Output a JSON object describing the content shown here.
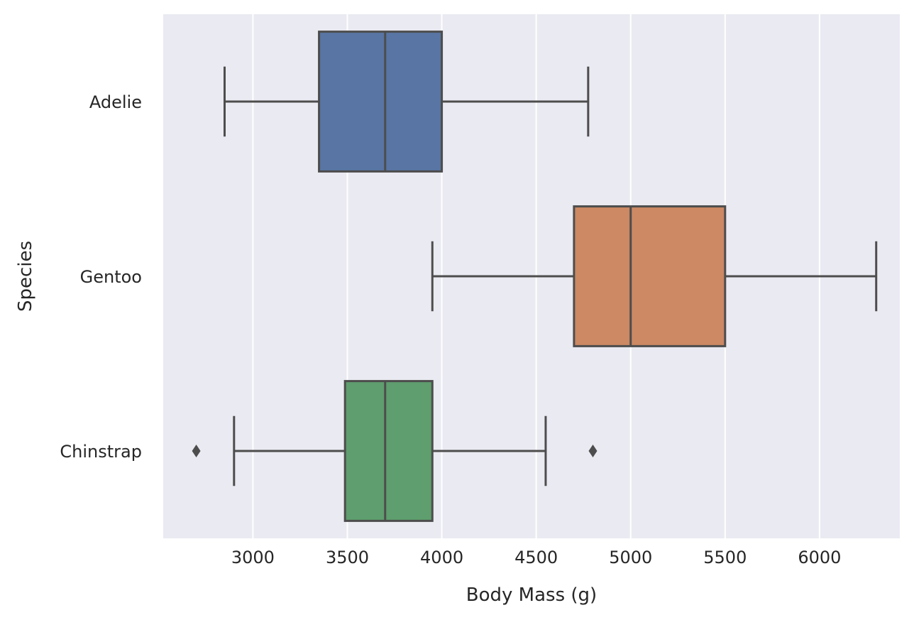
{
  "chart_data": {
    "type": "boxplot",
    "orientation": "horizontal",
    "xlabel": "Body Mass (g)",
    "ylabel": "Species",
    "xlim": [
      2525,
      6425
    ],
    "xticks": [
      3000,
      3500,
      4000,
      4500,
      5000,
      5500,
      6000
    ],
    "grid": true,
    "series": [
      {
        "name": "Adelie",
        "color": "#5875a4",
        "whisker_low": 2850,
        "q1": 3350,
        "median": 3700,
        "q3": 4000,
        "whisker_high": 4775,
        "outliers": []
      },
      {
        "name": "Gentoo",
        "color": "#cc8963",
        "whisker_low": 3950,
        "q1": 4700,
        "median": 5000,
        "q3": 5500,
        "whisker_high": 6300,
        "outliers": []
      },
      {
        "name": "Chinstrap",
        "color": "#5f9e6e",
        "whisker_low": 2900,
        "q1": 3487.5,
        "median": 3700,
        "q3": 3950,
        "whisker_high": 4550,
        "outliers": [
          2700,
          4800
        ]
      }
    ]
  }
}
